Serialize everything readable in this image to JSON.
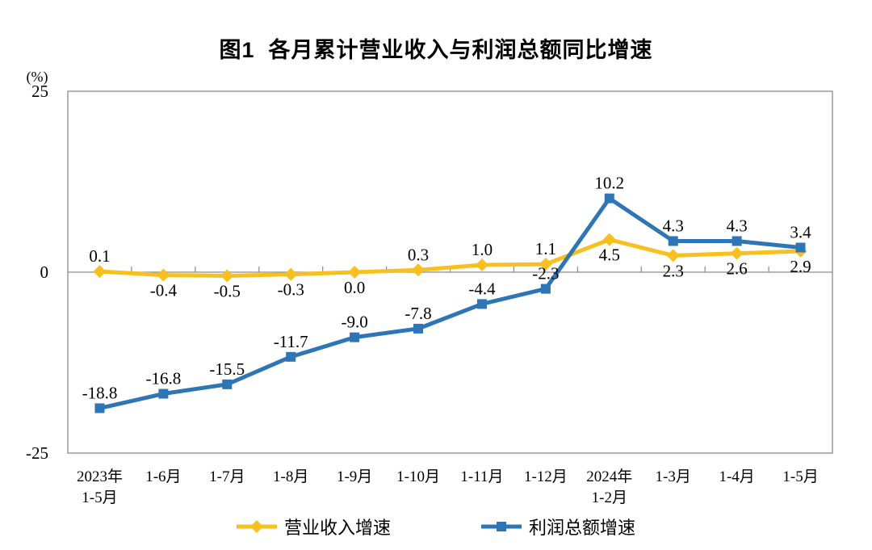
{
  "chart_data": {
    "type": "line",
    "title": "图1  各月累计营业收入与利润总额同比增速",
    "unit_label": "(%)",
    "ylim": [
      -25,
      25
    ],
    "y_ticks": [
      {
        "label": "25",
        "value": 25
      },
      {
        "label": "0",
        "value": 0
      },
      {
        "label": "-25",
        "value": -25
      }
    ],
    "grid": false,
    "legend_position": "bottom",
    "axis_color": "#8a8a8a",
    "text_color": "#000000",
    "categories": [
      [
        "2023年",
        "1-5月"
      ],
      [
        "1-6月"
      ],
      [
        "1-7月"
      ],
      [
        "1-8月"
      ],
      [
        "1-9月"
      ],
      [
        "1-10月"
      ],
      [
        "1-11月"
      ],
      [
        "1-12月"
      ],
      [
        "2024年",
        "1-2月"
      ],
      [
        "1-3月"
      ],
      [
        "1-4月"
      ],
      [
        "1-5月"
      ]
    ],
    "series": [
      {
        "name": "营业收入增速",
        "color": "#F8C01E",
        "marker": "diamond",
        "values": [
          0.1,
          -0.4,
          -0.5,
          -0.3,
          0.0,
          0.3,
          1.0,
          1.1,
          4.5,
          2.3,
          2.6,
          2.9
        ],
        "labels": [
          "0.1",
          "-0.4",
          "-0.5",
          "-0.3",
          "0.0",
          "0.3",
          "1.0",
          "1.1",
          "4.5",
          "2.3",
          "2.6",
          "2.9"
        ],
        "label_side": [
          "above",
          "below",
          "below",
          "below",
          "below",
          "above",
          "above",
          "above",
          "below",
          "below",
          "below",
          "below"
        ]
      },
      {
        "name": "利润总额增速",
        "color": "#2E75B6",
        "marker": "square",
        "values": [
          -18.8,
          -16.8,
          -15.5,
          -11.7,
          -9.0,
          -7.8,
          -4.4,
          -2.3,
          10.2,
          4.3,
          4.3,
          3.4
        ],
        "labels": [
          "-18.8",
          "-16.8",
          "-15.5",
          "-11.7",
          "-9.0",
          "-7.8",
          "-4.4",
          "-2.3",
          "10.2",
          "4.3",
          "4.3",
          "3.4"
        ],
        "label_side": [
          "above",
          "above",
          "above",
          "above",
          "above",
          "above",
          "above",
          "above",
          "above",
          "above",
          "above",
          "above"
        ]
      }
    ]
  }
}
